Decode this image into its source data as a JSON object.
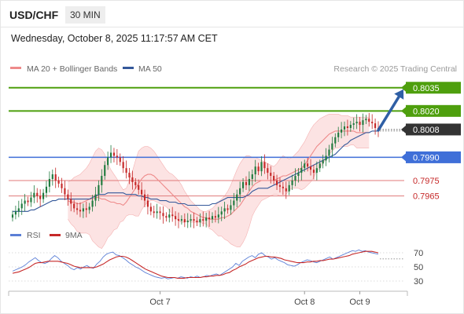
{
  "header": {
    "symbol": "USD/CHF",
    "timeframe": "30 MIN",
    "datetime": "Wednesday, October 8, 2025 11:17:57 AM CET"
  },
  "colors": {
    "ma20": "#ee8a8a",
    "band_fill": "#fbd9d9",
    "ma50": "#34589a",
    "up_candle": "#1f7a3e",
    "down_candle": "#c62828",
    "target": "#4e9f0d",
    "pivot": "#3f6fd8",
    "support": "#e07a7a",
    "current": "#333333",
    "arrow": "#2f5fa5",
    "rsi": "#5b7fd6",
    "rsi_ma": "#c62828"
  },
  "chart_data": [
    {
      "type": "candlestick",
      "legend": [
        {
          "name": "MA 20 + Bollinger Bands",
          "color": "#ee8a8a"
        },
        {
          "name": "MA 50",
          "color": "#34589a"
        }
      ],
      "source": "Research © 2025 Trading Central",
      "ylim": [
        0.7944,
        0.8042
      ],
      "price_levels": [
        {
          "value": 0.8035,
          "label": "0.8035",
          "kind": "target"
        },
        {
          "value": 0.802,
          "label": "0.8020",
          "kind": "target"
        },
        {
          "value": 0.8008,
          "label": "0.8008",
          "kind": "current"
        },
        {
          "value": 0.799,
          "label": "0.7990",
          "kind": "pivot"
        },
        {
          "value": 0.7975,
          "label": "0.7975",
          "kind": "support"
        },
        {
          "value": 0.7965,
          "label": "0.7965",
          "kind": "support"
        }
      ],
      "close": [
        0.7953,
        0.7955,
        0.7957,
        0.796,
        0.7962,
        0.7961,
        0.7964,
        0.7967,
        0.7965,
        0.7963,
        0.7967,
        0.7971,
        0.7976,
        0.7979,
        0.7975,
        0.7973,
        0.797,
        0.7966,
        0.7963,
        0.796,
        0.7957,
        0.7956,
        0.7955,
        0.7957,
        0.7956,
        0.7958,
        0.7962,
        0.7966,
        0.7972,
        0.7978,
        0.7985,
        0.799,
        0.7993,
        0.7991,
        0.799,
        0.7987,
        0.7983,
        0.798,
        0.7977,
        0.7974,
        0.7972,
        0.7969,
        0.7966,
        0.7962,
        0.7958,
        0.7955,
        0.7954,
        0.7955,
        0.7954,
        0.7952,
        0.7951,
        0.7953,
        0.7952,
        0.795,
        0.7949,
        0.795,
        0.7948,
        0.7949,
        0.795,
        0.7949,
        0.7948,
        0.795,
        0.7949,
        0.7951,
        0.795,
        0.7952,
        0.7951,
        0.7953,
        0.7955,
        0.7957,
        0.7956,
        0.7959,
        0.7962,
        0.7966,
        0.797,
        0.7974,
        0.7972,
        0.7976,
        0.7979,
        0.7984,
        0.7981,
        0.7987,
        0.7983,
        0.798,
        0.7978,
        0.7975,
        0.7972,
        0.7971,
        0.797,
        0.7968,
        0.7972,
        0.7975,
        0.7978,
        0.798,
        0.7983,
        0.7986,
        0.7984,
        0.7982,
        0.798,
        0.7983,
        0.7986,
        0.7988,
        0.7991,
        0.7995,
        0.7999,
        0.8003,
        0.8006,
        0.8008,
        0.801,
        0.8009,
        0.8011,
        0.8012,
        0.8013,
        0.8011,
        0.8014,
        0.8015,
        0.8013,
        0.8012,
        0.8009,
        0.8008
      ],
      "ma20_offset": 18,
      "bands": [
        0.7962,
        0.7961,
        0.7961,
        0.796,
        0.796,
        0.7961,
        0.7962,
        0.7963,
        0.7963,
        0.7964,
        0.7964,
        0.7963,
        0.7963,
        0.7962,
        0.7961,
        0.7961,
        0.796,
        0.796,
        0.7959,
        0.7961,
        0.7964,
        0.7967,
        0.797,
        0.7973,
        0.7976,
        0.7978,
        0.7979,
        0.7979,
        0.7978,
        0.7976,
        0.7974,
        0.7972,
        0.797,
        0.7968,
        0.7966,
        0.7964,
        0.7962,
        0.796,
        0.7958,
        0.7957,
        0.7955,
        0.7954,
        0.7953,
        0.7952,
        0.7951,
        0.7951,
        0.795,
        0.795,
        0.795,
        0.795,
        0.7951,
        0.7951,
        0.7952,
        0.7953,
        0.7955,
        0.7957,
        0.7959,
        0.7962,
        0.7965,
        0.7968,
        0.7971,
        0.7973,
        0.7974,
        0.7975,
        0.7975,
        0.7975,
        0.7975,
        0.7975,
        0.7976,
        0.7977,
        0.7978,
        0.7978,
        0.7979,
        0.798,
        0.7981,
        0.7982,
        0.7983,
        0.7985,
        0.7988,
        0.7991,
        0.7994,
        0.7997,
        0.7999,
        0.8001,
        0.8003,
        0.8005,
        0.8006,
        0.8007,
        0.8007,
        0.8007,
        0.8007,
        0.8007,
        0.8007,
        0.8007,
        0.8006,
        0.8006,
        0.8006,
        0.8006,
        0.8006
      ],
      "band_upper": [
        0.7974,
        0.7975,
        0.7977,
        0.7978,
        0.7979,
        0.7981,
        0.7983,
        0.7986,
        0.799,
        0.7994,
        0.7996,
        0.7995,
        0.7992,
        0.7986,
        0.7982,
        0.7979,
        0.7976,
        0.7972,
        0.7969,
        0.797,
        0.7975,
        0.7981,
        0.7988,
        0.7994,
        0.7996,
        0.7997,
        0.7997,
        0.7996,
        0.7994,
        0.7991,
        0.7988,
        0.7985,
        0.7982,
        0.798,
        0.7979,
        0.7977,
        0.7975,
        0.7972,
        0.7968,
        0.7965,
        0.7962,
        0.796,
        0.7958,
        0.7956,
        0.7955,
        0.7955,
        0.7956,
        0.7957,
        0.7959,
        0.7961,
        0.7963,
        0.7965,
        0.7968,
        0.7972,
        0.7977,
        0.7982,
        0.7986,
        0.7989,
        0.7991,
        0.7991,
        0.799,
        0.799,
        0.7989,
        0.7988,
        0.7987,
        0.7986,
        0.7985,
        0.7984,
        0.7986,
        0.7989,
        0.7991,
        0.799,
        0.7989,
        0.799,
        0.7992,
        0.7994,
        0.7997,
        0.8,
        0.8004,
        0.8008,
        0.8011,
        0.8013,
        0.8015,
        0.8016,
        0.8017,
        0.8018,
        0.8018,
        0.8018,
        0.8018,
        0.8017,
        0.8017,
        0.8017,
        0.8016,
        0.8016,
        0.8016,
        0.8016,
        0.8016,
        0.8016,
        0.8016
      ],
      "band_lower": [
        0.795,
        0.7947,
        0.7945,
        0.7942,
        0.7941,
        0.7941,
        0.7941,
        0.794,
        0.7936,
        0.7934,
        0.7932,
        0.7931,
        0.7934,
        0.7938,
        0.794,
        0.7943,
        0.7944,
        0.7948,
        0.7949,
        0.7952,
        0.7953,
        0.7953,
        0.7952,
        0.7952,
        0.7956,
        0.7959,
        0.7961,
        0.7962,
        0.7962,
        0.7961,
        0.796,
        0.7959,
        0.7958,
        0.7956,
        0.7953,
        0.7951,
        0.7949,
        0.7948,
        0.7948,
        0.7949,
        0.7948,
        0.7948,
        0.7948,
        0.7948,
        0.7947,
        0.7947,
        0.7944,
        0.7943,
        0.7941,
        0.7939,
        0.7939,
        0.7937,
        0.7936,
        0.7934,
        0.7933,
        0.7932,
        0.7932,
        0.7935,
        0.7939,
        0.7945,
        0.7952,
        0.7956,
        0.7959,
        0.7962,
        0.7963,
        0.7964,
        0.7965,
        0.7966,
        0.7966,
        0.7965,
        0.7965,
        0.7966,
        0.7969,
        0.797,
        0.797,
        0.797,
        0.7969,
        0.797,
        0.7972,
        0.7974,
        0.7977,
        0.7981,
        0.7983,
        0.7986,
        0.7989,
        0.7992,
        0.7994,
        0.7996,
        0.7996,
        0.7997,
        0.7997,
        0.7997,
        0.7998,
        0.7998,
        0.7996,
        0.7996,
        0.7996,
        0.7996,
        0.7996
      ],
      "ma50": [
        0.7955,
        0.7955,
        0.7955,
        0.7955,
        0.7955,
        0.7955,
        0.7956,
        0.7956,
        0.7957,
        0.7958,
        0.7959,
        0.796,
        0.7961,
        0.7962,
        0.7962,
        0.7963,
        0.7963,
        0.7963,
        0.7963,
        0.7963,
        0.7963,
        0.7963,
        0.7963,
        0.7963,
        0.7963,
        0.7963,
        0.7964,
        0.7965,
        0.7966,
        0.7966,
        0.7966,
        0.7967,
        0.7967,
        0.7967,
        0.7967,
        0.7967,
        0.7967,
        0.7966,
        0.7966,
        0.7966,
        0.7966,
        0.7965,
        0.7965,
        0.7964,
        0.7964,
        0.7963,
        0.7963,
        0.7963,
        0.7962,
        0.7962,
        0.7962,
        0.7961,
        0.7961,
        0.7961,
        0.796,
        0.796,
        0.796,
        0.7959,
        0.7959,
        0.7959,
        0.7959,
        0.7959,
        0.7959,
        0.7959,
        0.7959,
        0.796,
        0.796,
        0.7961,
        0.7962,
        0.7963,
        0.7964,
        0.7964,
        0.7964,
        0.7964,
        0.7964,
        0.7964,
        0.7965,
        0.7966,
        0.7968,
        0.7969,
        0.797,
        0.797,
        0.797,
        0.797,
        0.7971,
        0.7972,
        0.7973,
        0.7974,
        0.7975,
        0.7976,
        0.7977,
        0.7978,
        0.7979,
        0.798,
        0.7981,
        0.7982,
        0.7983,
        0.7984,
        0.7985,
        0.7986,
        0.7987,
        0.7988,
        0.7989,
        0.799,
        0.7991,
        0.7992,
        0.7994,
        0.7996,
        0.7998,
        0.7999,
        0.8001,
        0.8002,
        0.8003,
        0.8004,
        0.8005,
        0.8006,
        0.8006,
        0.8007,
        0.8007,
        0.8007
      ],
      "x_ticks": [
        {
          "index": 48,
          "label": "Oct 7"
        },
        {
          "index": 95,
          "label": "Oct 8"
        },
        {
          "index": 113,
          "label": "Oct 9"
        }
      ]
    },
    {
      "type": "line",
      "legend": [
        {
          "name": "RSI",
          "color": "#5b7fd6"
        },
        {
          "name": "9MA",
          "color": "#c62828"
        }
      ],
      "ylim": [
        20,
        80
      ],
      "y_ticks": [
        70,
        50,
        30
      ],
      "rsi": [
        44,
        46,
        48,
        50,
        53,
        57,
        60,
        63,
        59,
        56,
        55,
        57,
        62,
        66,
        63,
        58,
        55,
        52,
        48,
        46,
        49,
        47,
        50,
        52,
        49,
        48,
        54,
        58,
        64,
        68,
        70,
        71,
        67,
        66,
        63,
        60,
        56,
        53,
        50,
        48,
        45,
        42,
        40,
        38,
        36,
        35,
        34,
        35,
        33,
        34,
        35,
        34,
        36,
        35,
        34,
        36,
        35,
        37,
        35,
        36,
        38,
        37,
        39,
        40,
        38,
        41,
        44,
        47,
        50,
        55,
        52,
        58,
        61,
        64,
        66,
        63,
        68,
        70,
        66,
        64,
        61,
        63,
        60,
        58,
        56,
        53,
        52,
        51,
        53,
        56,
        58,
        60,
        59,
        57,
        56,
        58,
        60,
        62,
        64,
        61,
        63,
        65,
        67,
        69,
        71,
        73,
        72,
        74,
        72,
        73,
        71,
        70,
        69,
        68
      ],
      "rsi_ma": [
        41,
        42,
        43,
        45,
        47,
        49,
        52,
        55,
        56,
        56,
        57,
        58,
        58,
        58,
        58,
        57,
        56,
        55,
        53,
        51,
        50,
        49,
        49,
        49,
        49,
        49,
        50,
        52,
        54,
        57,
        60,
        62,
        64,
        65,
        65,
        64,
        62,
        59,
        56,
        53,
        50,
        47,
        45,
        43,
        41,
        39,
        37,
        36,
        35,
        35,
        35,
        34,
        34,
        34,
        35,
        35,
        35,
        35,
        35,
        36,
        36,
        37,
        37,
        38,
        38,
        39,
        41,
        42,
        45,
        47,
        50,
        52,
        54,
        57,
        59,
        61,
        63,
        64,
        65,
        65,
        64,
        64,
        63,
        62,
        60,
        59,
        58,
        57,
        56,
        56,
        56,
        57,
        57,
        58,
        58,
        59,
        59,
        60,
        61,
        61,
        62,
        63,
        64,
        65,
        66,
        68,
        69,
        70,
        71,
        72,
        72,
        72,
        71,
        70
      ]
    }
  ]
}
